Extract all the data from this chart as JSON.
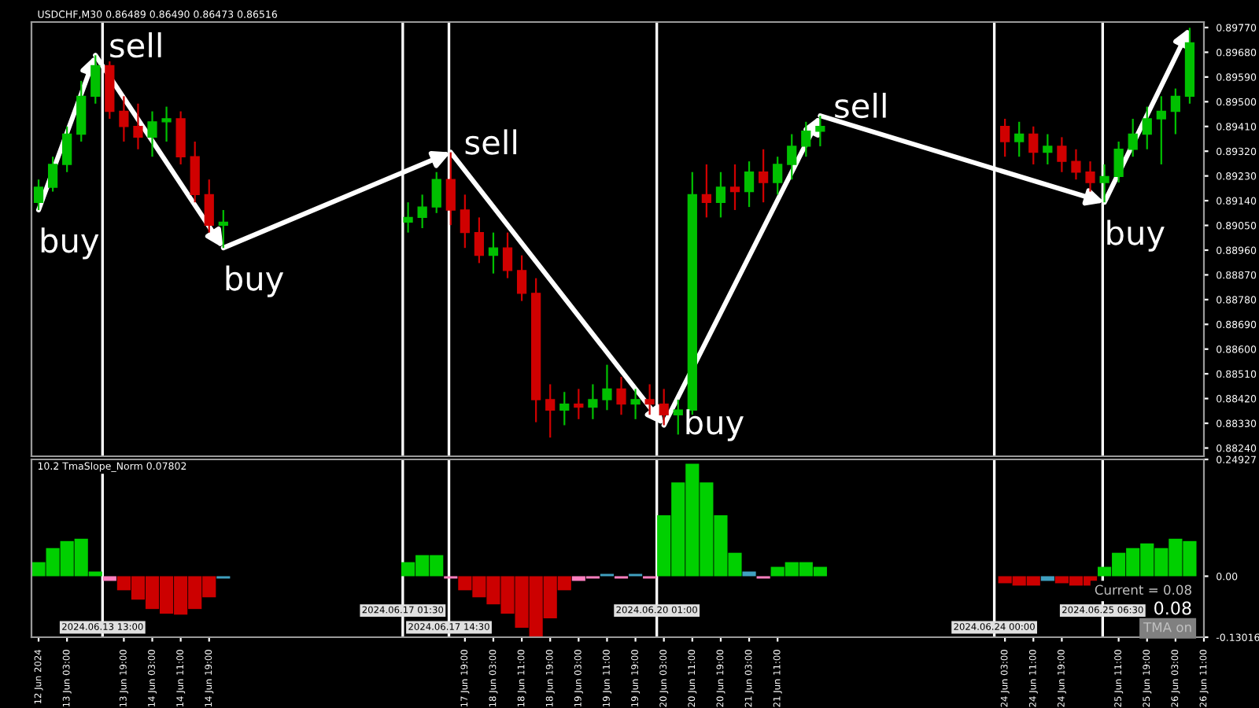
{
  "chart_data": [
    {
      "type": "candlestick",
      "title": "USDCHF,M30 0.86489 0.86490 0.86473 0.86516",
      "x": [
        "2024-06-12T19:00",
        "2024-06-12T23:00",
        "2024-06-13T03:00",
        "2024-06-13T07:00",
        "2024-06-13T11:00",
        "2024-06-13T15:00",
        "2024-06-13T19:00",
        "2024-06-13T23:00",
        "2024-06-14T03:00",
        "2024-06-14T07:00",
        "2024-06-14T11:00",
        "2024-06-14T15:00",
        "2024-06-14T19:00",
        "2024-06-14T23:00",
        "2024-06-17T03:00",
        "2024-06-17T07:00",
        "2024-06-17T11:00",
        "2024-06-17T15:00",
        "2024-06-17T19:00",
        "2024-06-17T23:00",
        "2024-06-18T03:00",
        "2024-06-18T07:00",
        "2024-06-18T11:00",
        "2024-06-18T15:00",
        "2024-06-18T19:00",
        "2024-06-18T23:00",
        "2024-06-19T03:00",
        "2024-06-19T07:00",
        "2024-06-19T11:00",
        "2024-06-19T15:00",
        "2024-06-19T19:00",
        "2024-06-19T23:00",
        "2024-06-20T03:00",
        "2024-06-20T07:00",
        "2024-06-20T11:00",
        "2024-06-20T15:00",
        "2024-06-20T19:00",
        "2024-06-20T23:00",
        "2024-06-21T03:00",
        "2024-06-21T07:00",
        "2024-06-21T11:00",
        "2024-06-21T15:00",
        "2024-06-21T19:00",
        "2024-06-21T23:00",
        "2024-06-24T03:00",
        "2024-06-24T07:00",
        "2024-06-24T11:00",
        "2024-06-24T15:00",
        "2024-06-24T19:00",
        "2024-06-24T23:00",
        "2024-06-25T03:00",
        "2024-06-25T07:00",
        "2024-06-25T11:00",
        "2024-06-25T15:00",
        "2024-06-25T19:00",
        "2024-06-25T23:00",
        "2024-06-26T03:00",
        "2024-06-26T07:00"
      ],
      "ohlc": [
        [
          0.89134,
          0.89217,
          0.89106,
          0.89189
        ],
        [
          0.89189,
          0.893,
          0.89173,
          0.89272
        ],
        [
          0.89272,
          0.8941,
          0.89244,
          0.89382
        ],
        [
          0.89382,
          0.89576,
          0.89355,
          0.8952
        ],
        [
          0.8952,
          0.89669,
          0.89493,
          0.89631
        ],
        [
          0.89631,
          0.89647,
          0.89438,
          0.89465
        ],
        [
          0.89465,
          0.8952,
          0.89355,
          0.8941
        ],
        [
          0.8941,
          0.89493,
          0.89327,
          0.89371
        ],
        [
          0.89371,
          0.89465,
          0.893,
          0.89427
        ],
        [
          0.89427,
          0.89482,
          0.89355,
          0.89438
        ],
        [
          0.89438,
          0.89465,
          0.89272,
          0.893
        ],
        [
          0.893,
          0.89355,
          0.89134,
          0.89162
        ],
        [
          0.89162,
          0.89217,
          0.89024,
          0.89051
        ],
        [
          0.89051,
          0.89106,
          0.88968,
          0.89062
        ],
        [
          0.89062,
          0.89134,
          0.89024,
          0.89079
        ],
        [
          0.89079,
          0.89162,
          0.8904,
          0.89117
        ],
        [
          0.89117,
          0.89244,
          0.89095,
          0.89217
        ],
        [
          0.89217,
          0.89316,
          0.89051,
          0.89106
        ],
        [
          0.89106,
          0.89162,
          0.88968,
          0.89024
        ],
        [
          0.89024,
          0.89079,
          0.88913,
          0.88941
        ],
        [
          0.88941,
          0.89024,
          0.88875,
          0.88968
        ],
        [
          0.88968,
          0.89024,
          0.88858,
          0.88886
        ],
        [
          0.88886,
          0.88941,
          0.88775,
          0.88803
        ],
        [
          0.88803,
          0.88858,
          0.88334,
          0.88416
        ],
        [
          0.88416,
          0.88472,
          0.88278,
          0.88378
        ],
        [
          0.88378,
          0.88444,
          0.88323,
          0.884
        ],
        [
          0.884,
          0.88455,
          0.88345,
          0.88389
        ],
        [
          0.88389,
          0.88472,
          0.88345,
          0.88416
        ],
        [
          0.88416,
          0.88543,
          0.88378,
          0.88455
        ],
        [
          0.88455,
          0.88499,
          0.88361,
          0.884
        ],
        [
          0.884,
          0.88455,
          0.88345,
          0.88416
        ],
        [
          0.88416,
          0.88472,
          0.88361,
          0.884
        ],
        [
          0.884,
          0.88455,
          0.88323,
          0.88361
        ],
        [
          0.88361,
          0.88416,
          0.88289,
          0.88378
        ],
        [
          0.88378,
          0.89244,
          0.88361,
          0.89162
        ],
        [
          0.89162,
          0.89272,
          0.89079,
          0.89134
        ],
        [
          0.89134,
          0.89244,
          0.89079,
          0.89189
        ],
        [
          0.89189,
          0.89272,
          0.89106,
          0.89173
        ],
        [
          0.89173,
          0.89283,
          0.89117,
          0.89244
        ],
        [
          0.89244,
          0.89327,
          0.89134,
          0.89206
        ],
        [
          0.89206,
          0.893,
          0.89162,
          0.89272
        ],
        [
          0.89272,
          0.89382,
          0.89217,
          0.89338
        ],
        [
          0.89338,
          0.89427,
          0.893,
          0.89393
        ],
        [
          0.89393,
          0.89449,
          0.89338,
          0.8941
        ],
        [
          0.8941,
          0.89438,
          0.893,
          0.89355
        ],
        [
          0.89355,
          0.89427,
          0.893,
          0.89382
        ],
        [
          0.89382,
          0.8941,
          0.89272,
          0.89316
        ],
        [
          0.89316,
          0.89382,
          0.89272,
          0.89338
        ],
        [
          0.89338,
          0.89371,
          0.89244,
          0.89283
        ],
        [
          0.89283,
          0.89327,
          0.89217,
          0.89244
        ],
        [
          0.89244,
          0.89283,
          0.89173,
          0.89206
        ],
        [
          0.89206,
          0.89272,
          0.89134,
          0.89228
        ],
        [
          0.89228,
          0.89355,
          0.89206,
          0.89327
        ],
        [
          0.89327,
          0.89438,
          0.893,
          0.89382
        ],
        [
          0.89382,
          0.89482,
          0.89327,
          0.89438
        ],
        [
          0.89438,
          0.8952,
          0.89272,
          0.89465
        ],
        [
          0.89465,
          0.89548,
          0.89382,
          0.8952
        ],
        [
          0.8952,
          0.89769,
          0.89493,
          0.89714
        ]
      ],
      "colors": [
        "#00c000",
        "#00c000",
        "#00c000",
        "#00c000",
        "#00c000",
        "#d00000",
        "#d00000",
        "#d00000",
        "#00c000",
        "#00c000",
        "#d00000",
        "#d00000",
        "#d00000",
        "#00c000",
        "#00c000",
        "#00c000",
        "#00c000",
        "#d00000",
        "#d00000",
        "#d00000",
        "#00c000",
        "#d00000",
        "#d00000",
        "#d00000",
        "#d00000",
        "#00c000",
        "#d00000",
        "#00c000",
        "#00c000",
        "#d00000",
        "#00c000",
        "#d00000",
        "#d00000",
        "#00c000",
        "#00c000",
        "#d00000",
        "#00c000",
        "#d00000",
        "#00c000",
        "#d00000",
        "#00c000",
        "#00c000",
        "#00c000",
        "#00c000",
        "#d00000",
        "#00c000",
        "#d00000",
        "#00c000",
        "#d00000",
        "#d00000",
        "#d00000",
        "#00c000",
        "#00c000",
        "#00c000",
        "#00c000",
        "#00c000",
        "#00c000",
        "#00c000"
      ],
      "xlim": [
        "2024-06-12T17:00",
        "2024-06-26T11:00"
      ],
      "ylim": [
        0.8821,
        0.8979
      ],
      "yticks": [
        {
          "value": 0.8824,
          "label": "0.88240"
        },
        {
          "value": 0.8833,
          "label": "0.88330"
        },
        {
          "value": 0.8842,
          "label": "0.88420"
        },
        {
          "value": 0.8851,
          "label": "0.88510"
        },
        {
          "value": 0.886,
          "label": "0.88600"
        },
        {
          "value": 0.8869,
          "label": "0.88690"
        },
        {
          "value": 0.8878,
          "label": "0.88780"
        },
        {
          "value": 0.8887,
          "label": "0.88870"
        },
        {
          "value": 0.8896,
          "label": "0.88960"
        },
        {
          "value": 0.8905,
          "label": "0.89050"
        },
        {
          "value": 0.8914,
          "label": "0.89140"
        },
        {
          "value": 0.8923,
          "label": "0.89230"
        },
        {
          "value": 0.8932,
          "label": "0.89320"
        },
        {
          "value": 0.8941,
          "label": "0.89410"
        },
        {
          "value": 0.895,
          "label": "0.89500"
        },
        {
          "value": 0.8959,
          "label": "0.89590"
        },
        {
          "value": 0.8968,
          "label": "0.89680"
        },
        {
          "value": 0.8977,
          "label": "0.89770"
        }
      ],
      "tick_labels": "y",
      "annotations": [
        {
          "text": "buy",
          "x": "2024-06-12T19:00",
          "y": 0.89106
        },
        {
          "text": "sell",
          "x": "2024-06-13T11:00",
          "y": 0.89669
        },
        {
          "text": "buy",
          "x": "2024-06-14T23:00",
          "y": 0.88968
        },
        {
          "text": "sell",
          "x": "2024-06-17T15:00",
          "y": 0.89316
        },
        {
          "text": "buy",
          "x": "2024-06-20T03:00",
          "y": 0.88323
        },
        {
          "text": "sell",
          "x": "2024-06-21T23:00",
          "y": 0.89449
        },
        {
          "text": "buy",
          "x": "2024-06-25T07:00",
          "y": 0.89134
        }
      ],
      "ref_lines": [
        {
          "axis": "x",
          "value": "2024-06-13T13:00",
          "color": "#ffffff"
        },
        {
          "axis": "x",
          "value": "2024-06-17T01:30",
          "color": "#ffffff"
        },
        {
          "axis": "x",
          "value": "2024-06-17T14:30",
          "color": "#ffffff"
        },
        {
          "axis": "x",
          "value": "2024-06-20T01:00",
          "color": "#ffffff"
        },
        {
          "axis": "x",
          "value": "2024-06-24T00:00",
          "color": "#ffffff"
        },
        {
          "axis": "x",
          "value": "2024-06-25T06:30",
          "color": "#ffffff"
        }
      ]
    },
    {
      "type": "bar",
      "title": "10.2 TmaSlope_Norm 0.07802",
      "x": [
        "2024-06-12T19:00",
        "2024-06-12T23:00",
        "2024-06-13T03:00",
        "2024-06-13T07:00",
        "2024-06-13T11:00",
        "2024-06-13T15:00",
        "2024-06-13T19:00",
        "2024-06-13T23:00",
        "2024-06-14T03:00",
        "2024-06-14T07:00",
        "2024-06-14T11:00",
        "2024-06-14T15:00",
        "2024-06-14T19:00",
        "2024-06-14T23:00",
        "2024-06-17T03:00",
        "2024-06-17T07:00",
        "2024-06-17T11:00",
        "2024-06-17T15:00",
        "2024-06-17T19:00",
        "2024-06-17T23:00",
        "2024-06-18T03:00",
        "2024-06-18T07:00",
        "2024-06-18T11:00",
        "2024-06-18T15:00",
        "2024-06-18T19:00",
        "2024-06-18T23:00",
        "2024-06-19T03:00",
        "2024-06-19T07:00",
        "2024-06-19T11:00",
        "2024-06-19T15:00",
        "2024-06-19T19:00",
        "2024-06-19T23:00",
        "2024-06-20T03:00",
        "2024-06-20T07:00",
        "2024-06-20T11:00",
        "2024-06-20T15:00",
        "2024-06-20T19:00",
        "2024-06-20T23:00",
        "2024-06-21T03:00",
        "2024-06-21T07:00",
        "2024-06-21T11:00",
        "2024-06-21T15:00",
        "2024-06-21T19:00",
        "2024-06-21T23:00",
        "2024-06-24T03:00",
        "2024-06-24T07:00",
        "2024-06-24T11:00",
        "2024-06-24T15:00",
        "2024-06-24T19:00",
        "2024-06-24T23:00",
        "2024-06-25T03:00",
        "2024-06-25T07:00",
        "2024-06-25T11:00",
        "2024-06-25T15:00",
        "2024-06-25T19:00",
        "2024-06-25T23:00",
        "2024-06-26T03:00",
        "2024-06-26T07:00"
      ],
      "values": [
        0.03,
        0.06,
        0.075,
        0.08,
        0.01,
        -0.01,
        -0.03,
        -0.05,
        -0.07,
        -0.08,
        -0.082,
        -0.07,
        -0.045,
        -0.005,
        0.03,
        0.045,
        0.045,
        -0.005,
        -0.03,
        -0.045,
        -0.06,
        -0.08,
        -0.11,
        -0.13,
        -0.09,
        -0.03,
        -0.01,
        -0.005,
        0.005,
        -0.005,
        0.005,
        -0.005,
        0.13,
        0.2,
        0.24,
        0.2,
        0.13,
        0.05,
        0.01,
        -0.005,
        0.02,
        0.03,
        0.03,
        0.02,
        -0.015,
        -0.02,
        -0.02,
        -0.01,
        -0.015,
        -0.02,
        -0.02,
        0.02,
        0.05,
        0.06,
        0.07,
        0.06,
        0.08,
        0.075
      ],
      "colors": [
        "#00d000",
        "#00d000",
        "#00d000",
        "#00d000",
        "#00d000",
        "#ff80c0",
        "#cc0000",
        "#cc0000",
        "#cc0000",
        "#cc0000",
        "#cc0000",
        "#cc0000",
        "#cc0000",
        "#40a0c0",
        "#00d000",
        "#00d000",
        "#00d000",
        "#ff80c0",
        "#cc0000",
        "#cc0000",
        "#cc0000",
        "#cc0000",
        "#cc0000",
        "#cc0000",
        "#cc0000",
        "#cc0000",
        "#ff80c0",
        "#ff80c0",
        "#40a0c0",
        "#ff80c0",
        "#40a0c0",
        "#ff80c0",
        "#00d000",
        "#00d000",
        "#00d000",
        "#00d000",
        "#00d000",
        "#00d000",
        "#40a0c0",
        "#ff80c0",
        "#00d000",
        "#00d000",
        "#00d000",
        "#00d000",
        "#cc0000",
        "#cc0000",
        "#cc0000",
        "#40a0c0",
        "#cc0000",
        "#cc0000",
        "#cc0000",
        "#00d000",
        "#00d000",
        "#00d000",
        "#00d000",
        "#00d000",
        "#00d000",
        "#00d000"
      ],
      "xlim": [
        "2024-06-12T17:00",
        "2024-06-26T11:00"
      ],
      "ylim": [
        -0.13016,
        0.24927
      ],
      "yticks": [
        {
          "value": 0.24927,
          "label": "0.24927"
        },
        {
          "value": 0,
          "label": "0.00"
        },
        {
          "value": -0.13016,
          "label": "-0.13016"
        }
      ],
      "xticks": [
        {
          "value": "2024-06-12T19:00",
          "label": "12 Jun 2024"
        },
        {
          "value": "2024-06-13T03:00",
          "label": "13 Jun 03:00"
        },
        {
          "value": "2024-06-13T19:00",
          "label": "13 Jun 19:00"
        },
        {
          "value": "2024-06-14T03:00",
          "label": "14 Jun 03:00"
        },
        {
          "value": "2024-06-14T11:00",
          "label": "14 Jun 11:00"
        },
        {
          "value": "2024-06-14T19:00",
          "label": "14 Jun 19:00"
        },
        {
          "value": "2024-06-17T19:00",
          "label": "17 Jun 19:00"
        },
        {
          "value": "2024-06-18T03:00",
          "label": "18 Jun 03:00"
        },
        {
          "value": "2024-06-18T11:00",
          "label": "18 Jun 11:00"
        },
        {
          "value": "2024-06-18T19:00",
          "label": "18 Jun 19:00"
        },
        {
          "value": "2024-06-19T03:00",
          "label": "19 Jun 03:00"
        },
        {
          "value": "2024-06-19T11:00",
          "label": "19 Jun 11:00"
        },
        {
          "value": "2024-06-19T19:00",
          "label": "19 Jun 19:00"
        },
        {
          "value": "2024-06-20T03:00",
          "label": "20 Jun 03:00"
        },
        {
          "value": "2024-06-20T11:00",
          "label": "20 Jun 11:00"
        },
        {
          "value": "2024-06-20T19:00",
          "label": "20 Jun 19:00"
        },
        {
          "value": "2024-06-21T03:00",
          "label": "21 Jun 03:00"
        },
        {
          "value": "2024-06-21T11:00",
          "label": "21 Jun 11:00"
        },
        {
          "value": "2024-06-24T03:00",
          "label": "24 Jun 03:00"
        },
        {
          "value": "2024-06-24T11:00",
          "label": "24 Jun 11:00"
        },
        {
          "value": "2024-06-24T19:00",
          "label": "24 Jun 19:00"
        },
        {
          "value": "2024-06-25T11:00",
          "label": "25 Jun 11:00"
        },
        {
          "value": "2024-06-25T19:00",
          "label": "25 Jun 19:00"
        },
        {
          "value": "2024-06-26T03:00",
          "label": "26 Jun 03:00"
        },
        {
          "value": "2024-06-26T11:00",
          "label": "26 Jun 11:00"
        }
      ],
      "annotations": [
        "Current = 0.08",
        "0.08",
        "TMA on"
      ],
      "ref_lines": [
        {
          "axis": "x",
          "value": "2024-06-13T13:00",
          "label": "2024.06.13 13:00",
          "color": "#ffffff"
        },
        {
          "axis": "x",
          "value": "2024-06-17T01:30",
          "label": "2024.06.17 01:30",
          "color": "#ffffff"
        },
        {
          "axis": "x",
          "value": "2024-06-17T14:30",
          "label": "2024.06.17 14:30",
          "color": "#ffffff"
        },
        {
          "axis": "x",
          "value": "2024-06-20T01:00",
          "label": "2024.06.20 01:00",
          "color": "#ffffff"
        },
        {
          "axis": "x",
          "value": "2024-06-24T00:00",
          "label": "2024.06.24 00:00",
          "color": "#ffffff"
        },
        {
          "axis": "x",
          "value": "2024-06-25T06:30",
          "label": "2024.06.25 06:30",
          "color": "#ffffff"
        }
      ]
    }
  ]
}
